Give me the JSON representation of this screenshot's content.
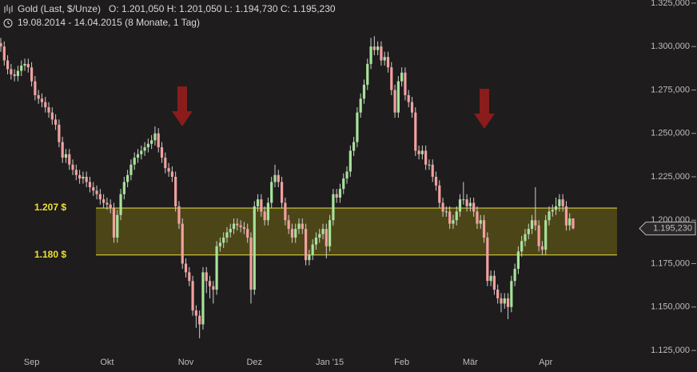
{
  "chart_data": {
    "type": "candlestick",
    "title": "Gold (Last, $/Unze)",
    "ohlc_text": "O: 1.201,050   H: 1.201,050   L: 1.194,730   C: 1.195,230",
    "period_text": "19.08.2014 - 14.04.2015 (8 Monate, 1 Tag)",
    "last_price_label": "1.195,230",
    "categories": [
      null,
      null,
      null,
      null,
      null,
      null,
      null,
      null,
      null,
      "Sep",
      null,
      null,
      null,
      null,
      null,
      null,
      null,
      null,
      null,
      null,
      null,
      null,
      null,
      null,
      null,
      null,
      null,
      null,
      null,
      null,
      null,
      "Okt",
      null,
      null,
      null,
      null,
      null,
      null,
      null,
      null,
      null,
      null,
      null,
      null,
      null,
      null,
      null,
      null,
      null,
      null,
      null,
      null,
      null,
      null,
      "Nov",
      null,
      null,
      null,
      null,
      null,
      null,
      null,
      null,
      null,
      null,
      null,
      null,
      null,
      null,
      null,
      null,
      null,
      null,
      null,
      "Dez",
      null,
      null,
      null,
      null,
      null,
      null,
      null,
      null,
      null,
      null,
      null,
      null,
      null,
      null,
      null,
      null,
      null,
      null,
      null,
      null,
      null,
      "Jan '15",
      null,
      null,
      null,
      null,
      null,
      null,
      null,
      null,
      null,
      null,
      null,
      null,
      null,
      null,
      null,
      null,
      null,
      null,
      null,
      null,
      "Feb",
      null,
      null,
      null,
      null,
      null,
      null,
      null,
      null,
      null,
      null,
      null,
      null,
      null,
      null,
      null,
      null,
      null,
      null,
      null,
      "Mär",
      null,
      null,
      null,
      null,
      null,
      null,
      null,
      null,
      null,
      null,
      null,
      null,
      null,
      null,
      null,
      null,
      null,
      null,
      null,
      null,
      null,
      "Apr",
      null,
      null,
      null,
      null,
      null,
      null,
      null,
      null
    ],
    "open": [
      1.302,
      1.3,
      1.292,
      1.287,
      1.284,
      1.283,
      1.286,
      1.289,
      1.29,
      1.288,
      1.28,
      1.272,
      1.27,
      1.268,
      1.265,
      1.262,
      1.258,
      1.255,
      1.245,
      1.236,
      1.238,
      1.232,
      1.229,
      1.226,
      1.224,
      1.225,
      1.222,
      1.219,
      1.217,
      1.215,
      1.212,
      1.21,
      1.209,
      1.207,
      1.19,
      1.203,
      1.215,
      1.222,
      1.226,
      1.232,
      1.236,
      1.238,
      1.24,
      1.242,
      1.244,
      1.246,
      1.25,
      1.242,
      1.236,
      1.23,
      1.228,
      1.225,
      1.208,
      1.198,
      1.175,
      1.17,
      1.165,
      1.148,
      1.145,
      1.14,
      1.17,
      1.165,
      1.162,
      1.16,
      1.185,
      1.187,
      1.19,
      1.193,
      1.195,
      1.198,
      1.197,
      1.196,
      1.195,
      1.19,
      1.16,
      1.208,
      1.212,
      1.205,
      1.2,
      1.21,
      1.222,
      1.226,
      1.222,
      1.21,
      1.2,
      1.195,
      1.19,
      1.195,
      1.198,
      1.195,
      1.177,
      1.18,
      1.186,
      1.19,
      1.192,
      1.195,
      1.185,
      1.2,
      1.215,
      1.213,
      1.218,
      1.224,
      1.228,
      1.24,
      1.245,
      1.262,
      1.27,
      1.278,
      1.29,
      1.3,
      1.298,
      1.3,
      1.292,
      1.294,
      1.288,
      1.275,
      1.262,
      1.28,
      1.285,
      1.272,
      1.268,
      1.262,
      1.24,
      1.238,
      1.24,
      1.232,
      1.232,
      1.225,
      1.22,
      1.21,
      1.205,
      1.205,
      1.198,
      1.2,
      1.205,
      1.212,
      1.212,
      1.208,
      1.21,
      1.205,
      1.198,
      1.2,
      1.19,
      1.165,
      1.168,
      1.16,
      1.155,
      1.152,
      1.155,
      1.15,
      1.165,
      1.172,
      1.182,
      1.188,
      1.192,
      1.195,
      1.2,
      1.197,
      1.185,
      1.183,
      1.2,
      1.205,
      1.206,
      1.208,
      1.212,
      1.208,
      1.197,
      1.20105
    ],
    "high": [
      1.305,
      1.303,
      1.295,
      1.29,
      1.287,
      1.289,
      1.292,
      1.293,
      1.293,
      1.291,
      1.283,
      1.275,
      1.273,
      1.271,
      1.268,
      1.265,
      1.261,
      1.258,
      1.248,
      1.241,
      1.241,
      1.235,
      1.232,
      1.229,
      1.228,
      1.228,
      1.225,
      1.222,
      1.22,
      1.218,
      1.215,
      1.213,
      1.212,
      1.21,
      1.206,
      1.218,
      1.225,
      1.229,
      1.235,
      1.239,
      1.241,
      1.243,
      1.245,
      1.247,
      1.249,
      1.254,
      1.253,
      1.245,
      1.239,
      1.233,
      1.231,
      1.228,
      1.211,
      1.201,
      1.178,
      1.173,
      1.168,
      1.151,
      1.148,
      1.173,
      1.173,
      1.168,
      1.165,
      1.188,
      1.19,
      1.193,
      1.196,
      1.198,
      1.201,
      1.201,
      1.2,
      1.199,
      1.198,
      1.193,
      1.211,
      1.215,
      1.215,
      1.208,
      1.213,
      1.225,
      1.232,
      1.229,
      1.225,
      1.213,
      1.203,
      1.198,
      1.198,
      1.201,
      1.201,
      1.198,
      1.183,
      1.189,
      1.193,
      1.195,
      1.198,
      1.198,
      1.203,
      1.218,
      1.218,
      1.221,
      1.227,
      1.231,
      1.243,
      1.248,
      1.265,
      1.273,
      1.281,
      1.293,
      1.305,
      1.306,
      1.303,
      1.303,
      1.297,
      1.297,
      1.291,
      1.278,
      1.283,
      1.288,
      1.288,
      1.275,
      1.271,
      1.265,
      1.243,
      1.243,
      1.243,
      1.235,
      1.235,
      1.228,
      1.223,
      1.213,
      1.208,
      1.208,
      1.203,
      1.208,
      1.215,
      1.222,
      1.215,
      1.213,
      1.213,
      1.208,
      1.203,
      1.203,
      1.193,
      1.171,
      1.171,
      1.163,
      1.158,
      1.158,
      1.158,
      1.168,
      1.175,
      1.185,
      1.191,
      1.195,
      1.198,
      1.203,
      1.219,
      1.2,
      1.188,
      1.203,
      1.208,
      1.209,
      1.213,
      1.215,
      1.215,
      1.211,
      1.204,
      1.20105
    ],
    "low": [
      1.297,
      1.289,
      1.284,
      1.281,
      1.28,
      1.28,
      1.283,
      1.286,
      1.285,
      1.277,
      1.269,
      1.267,
      1.265,
      1.262,
      1.259,
      1.255,
      1.252,
      1.242,
      1.233,
      1.233,
      1.229,
      1.226,
      1.223,
      1.221,
      1.221,
      1.219,
      1.216,
      1.214,
      1.212,
      1.209,
      1.207,
      1.206,
      1.204,
      1.187,
      1.187,
      1.2,
      1.212,
      1.219,
      1.223,
      1.229,
      1.233,
      1.235,
      1.237,
      1.239,
      1.241,
      1.243,
      1.239,
      1.233,
      1.227,
      1.225,
      1.222,
      1.205,
      1.195,
      1.172,
      1.167,
      1.162,
      1.145,
      1.138,
      1.132,
      1.137,
      1.158,
      1.155,
      1.152,
      1.157,
      1.182,
      1.184,
      1.187,
      1.19,
      1.192,
      1.194,
      1.193,
      1.192,
      1.187,
      1.152,
      1.157,
      1.205,
      1.202,
      1.197,
      1.197,
      1.207,
      1.219,
      1.219,
      1.207,
      1.197,
      1.192,
      1.187,
      1.187,
      1.192,
      1.192,
      1.174,
      1.174,
      1.177,
      1.183,
      1.187,
      1.189,
      1.178,
      1.182,
      1.197,
      1.21,
      1.21,
      1.215,
      1.221,
      1.225,
      1.237,
      1.242,
      1.259,
      1.267,
      1.275,
      1.287,
      1.295,
      1.295,
      1.289,
      1.289,
      1.285,
      1.272,
      1.259,
      1.259,
      1.277,
      1.269,
      1.265,
      1.259,
      1.237,
      1.235,
      1.235,
      1.229,
      1.229,
      1.222,
      1.217,
      1.207,
      1.202,
      1.202,
      1.195,
      1.195,
      1.197,
      1.202,
      1.209,
      1.205,
      1.205,
      1.202,
      1.195,
      1.195,
      1.187,
      1.162,
      1.162,
      1.157,
      1.152,
      1.147,
      1.149,
      1.143,
      1.147,
      1.162,
      1.169,
      1.179,
      1.185,
      1.189,
      1.192,
      1.194,
      1.182,
      1.18,
      1.18,
      1.197,
      1.202,
      1.203,
      1.205,
      1.205,
      1.194,
      1.194,
      1.19473
    ],
    "close": [
      1.3,
      1.292,
      1.287,
      1.284,
      1.283,
      1.286,
      1.289,
      1.29,
      1.288,
      1.28,
      1.272,
      1.27,
      1.268,
      1.265,
      1.262,
      1.258,
      1.255,
      1.245,
      1.236,
      1.238,
      1.232,
      1.229,
      1.226,
      1.224,
      1.225,
      1.222,
      1.219,
      1.217,
      1.215,
      1.212,
      1.21,
      1.209,
      1.207,
      1.19,
      1.203,
      1.215,
      1.222,
      1.226,
      1.232,
      1.236,
      1.238,
      1.24,
      1.242,
      1.244,
      1.246,
      1.25,
      1.242,
      1.236,
      1.23,
      1.228,
      1.225,
      1.208,
      1.198,
      1.175,
      1.17,
      1.165,
      1.148,
      1.145,
      1.14,
      1.17,
      1.165,
      1.162,
      1.16,
      1.185,
      1.187,
      1.19,
      1.193,
      1.195,
      1.198,
      1.197,
      1.196,
      1.195,
      1.19,
      1.16,
      1.208,
      1.212,
      1.205,
      1.2,
      1.21,
      1.222,
      1.226,
      1.222,
      1.21,
      1.2,
      1.195,
      1.19,
      1.195,
      1.198,
      1.195,
      1.177,
      1.18,
      1.186,
      1.19,
      1.192,
      1.195,
      1.185,
      1.2,
      1.215,
      1.213,
      1.218,
      1.224,
      1.228,
      1.24,
      1.245,
      1.262,
      1.27,
      1.278,
      1.29,
      1.3,
      1.298,
      1.3,
      1.292,
      1.294,
      1.288,
      1.275,
      1.262,
      1.28,
      1.285,
      1.272,
      1.268,
      1.262,
      1.24,
      1.238,
      1.24,
      1.232,
      1.232,
      1.225,
      1.22,
      1.21,
      1.205,
      1.205,
      1.198,
      1.2,
      1.205,
      1.212,
      1.212,
      1.208,
      1.21,
      1.205,
      1.198,
      1.2,
      1.19,
      1.165,
      1.168,
      1.16,
      1.155,
      1.152,
      1.155,
      1.15,
      1.165,
      1.172,
      1.182,
      1.188,
      1.192,
      1.195,
      1.2,
      1.197,
      1.185,
      1.183,
      1.2,
      1.205,
      1.206,
      1.208,
      1.212,
      1.208,
      1.197,
      1.201,
      1.19523
    ],
    "up_color": "#a6e39a",
    "down_color": "#f2a0a0",
    "ylim": [
      1.1218,
      1.3268
    ],
    "yticks": [
      {
        "value": 1.125,
        "label": "1.125,000"
      },
      {
        "value": 1.15,
        "label": "1.150,000"
      },
      {
        "value": 1.175,
        "label": "1.175,000"
      },
      {
        "value": 1.2,
        "label": "1.200,000"
      },
      {
        "value": 1.225,
        "label": "1.225,000"
      },
      {
        "value": 1.25,
        "label": "1.250,000"
      },
      {
        "value": 1.275,
        "label": "1.275,000"
      },
      {
        "value": 1.3,
        "label": "1.300,000"
      },
      {
        "value": 1.325,
        "label": "1.325,000"
      }
    ],
    "annotations": [
      {
        "label": "1.207 $",
        "value": 1.207
      },
      {
        "label": "1.180 $",
        "value": 1.18
      }
    ]
  }
}
